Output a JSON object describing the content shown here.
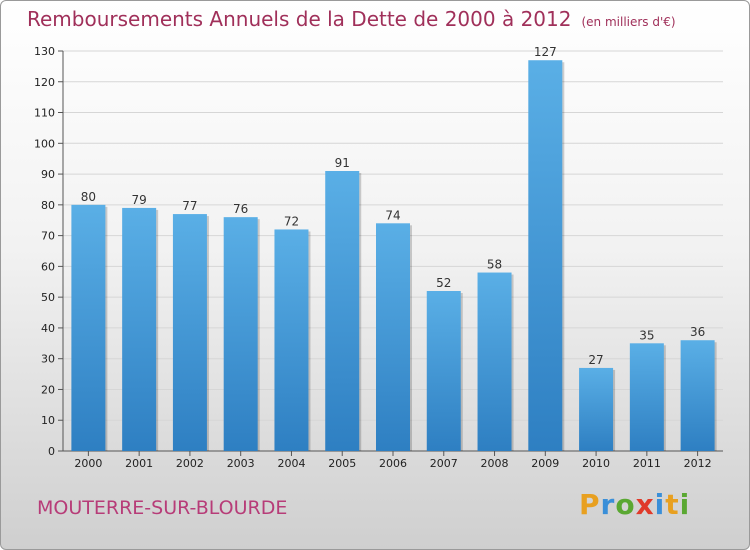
{
  "header": {
    "title": "Remboursements Annuels de la Dette de 2000 à 2012",
    "unit": "(en milliers d'€)"
  },
  "footer": {
    "commune": "MOUTERRE-SUR-BLOURDE",
    "logo_text": "Proxiti"
  },
  "colors": {
    "bar_top": "#5aafe6",
    "bar_bottom": "#2e7fc2",
    "title": "#a0305a",
    "commune": "#b73c78",
    "logo": [
      "#e8a020",
      "#3a8fd8",
      "#5aa832",
      "#e03a2a",
      "#3a8fd8",
      "#e8a020",
      "#5aa832"
    ]
  },
  "chart_data": {
    "type": "bar",
    "title": "Remboursements Annuels de la Dette de 2000 à 2012",
    "xlabel": "",
    "ylabel": "",
    "categories": [
      "2000",
      "2001",
      "2002",
      "2003",
      "2004",
      "2005",
      "2006",
      "2007",
      "2008",
      "2009",
      "2010",
      "2011",
      "2012"
    ],
    "values": [
      80,
      79,
      77,
      76,
      72,
      91,
      74,
      52,
      58,
      127,
      27,
      35,
      36
    ],
    "ylim": [
      0,
      130
    ],
    "yticks": [
      0,
      10,
      20,
      30,
      40,
      50,
      60,
      70,
      80,
      90,
      100,
      110,
      120,
      130
    ],
    "grid": true,
    "legend": "none"
  }
}
